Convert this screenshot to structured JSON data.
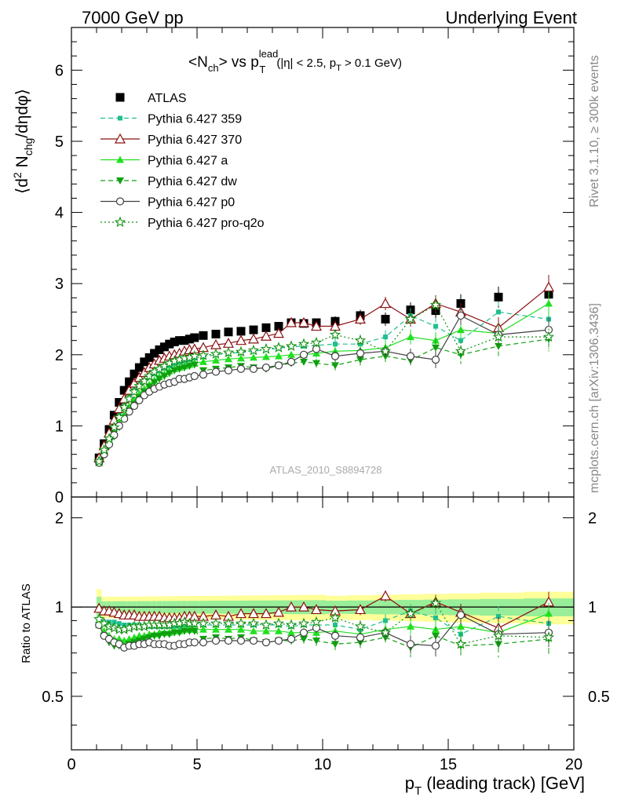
{
  "header": {
    "left": "7000 GeV pp",
    "right": "Underlying Event"
  },
  "side_labels": {
    "rivet": "Rivet 3.1.10, ≥ 300k events",
    "mcplots": "mcplots.cern.ch [arXiv:1306.3436]"
  },
  "chart_data": [
    {
      "type": "line",
      "title_parts": {
        "a": "<N",
        "a_sub": "ch",
        "b": "> vs p",
        "b_sup": "lead",
        "b_sub": "T",
        "cut1": "(|η| < 2.5, p",
        "cut_sub": "T",
        "cut2": " > 0.1 GeV)"
      },
      "ylabel_parts": {
        "a": "⟨d",
        "a_sup": "2",
        "b": " N",
        "b_sub": "chg",
        "c": "/dηdφ⟩"
      },
      "watermark": "ATLAS_2010_S8894728",
      "xlim": [
        0,
        20
      ],
      "ylim": [
        0,
        6.6
      ],
      "yticks": [
        "0",
        "1",
        "2",
        "3",
        "4",
        "5",
        "6"
      ],
      "legend_position": "top-left",
      "series": [
        {
          "name": "ATLAS",
          "color": "#000000",
          "line": "none",
          "marker": "square-filled",
          "x": [
            1.1,
            1.3,
            1.5,
            1.7,
            1.9,
            2.1,
            2.3,
            2.5,
            2.7,
            2.9,
            3.1,
            3.3,
            3.5,
            3.7,
            3.9,
            4.1,
            4.3,
            4.5,
            4.7,
            4.9,
            5.25,
            5.75,
            6.25,
            6.75,
            7.25,
            7.75,
            8.25,
            8.75,
            9.25,
            9.75,
            10.5,
            11.5,
            12.5,
            13.5,
            14.5,
            15.5,
            17,
            19
          ],
          "y": [
            0.55,
            0.75,
            0.95,
            1.15,
            1.33,
            1.5,
            1.62,
            1.73,
            1.82,
            1.9,
            1.96,
            2.02,
            2.07,
            2.11,
            2.15,
            2.18,
            2.2,
            2.2,
            2.22,
            2.24,
            2.27,
            2.29,
            2.32,
            2.33,
            2.35,
            2.38,
            2.4,
            2.45,
            2.44,
            2.45,
            2.47,
            2.55,
            2.5,
            2.63,
            2.62,
            2.72,
            2.81,
            2.85
          ]
        },
        {
          "name": "Pythia 6.427 359",
          "color": "#1fbf8f",
          "line": "dashed",
          "marker": "square-small",
          "x": [
            1.1,
            1.3,
            1.5,
            1.7,
            1.9,
            2.1,
            2.3,
            2.5,
            2.7,
            2.9,
            3.1,
            3.3,
            3.5,
            3.7,
            3.9,
            4.1,
            4.3,
            4.5,
            4.7,
            4.9,
            5.25,
            5.75,
            6.25,
            6.75,
            7.25,
            7.75,
            8.25,
            8.75,
            9.25,
            9.75,
            10.5,
            11.5,
            12.5,
            13.5,
            14.5,
            15.5,
            17,
            19
          ],
          "y": [
            0.5,
            0.68,
            0.85,
            1.02,
            1.17,
            1.3,
            1.41,
            1.5,
            1.58,
            1.64,
            1.69,
            1.73,
            1.77,
            1.81,
            1.84,
            1.87,
            1.89,
            1.91,
            1.93,
            1.95,
            1.97,
            2.0,
            2.02,
            2.03,
            2.05,
            2.07,
            2.09,
            2.11,
            2.12,
            2.13,
            2.15,
            2.15,
            2.25,
            2.55,
            2.4,
            2.2,
            2.6,
            2.5
          ]
        },
        {
          "name": "Pythia 6.427 370",
          "color": "#8b1010",
          "line": "solid",
          "marker": "triangle-open",
          "x": [
            1.1,
            1.3,
            1.5,
            1.7,
            1.9,
            2.1,
            2.3,
            2.5,
            2.7,
            2.9,
            3.1,
            3.3,
            3.5,
            3.7,
            3.9,
            4.1,
            4.3,
            4.5,
            4.7,
            4.9,
            5.25,
            5.75,
            6.25,
            6.75,
            7.25,
            7.75,
            8.25,
            8.75,
            9.25,
            9.75,
            10.5,
            11.5,
            12.5,
            13.5,
            14.5,
            15.5,
            17,
            19
          ],
          "y": [
            0.55,
            0.72,
            0.9,
            1.08,
            1.24,
            1.38,
            1.5,
            1.6,
            1.68,
            1.75,
            1.82,
            1.87,
            1.92,
            1.95,
            1.98,
            2.0,
            2.02,
            2.05,
            2.07,
            2.08,
            2.1,
            2.14,
            2.16,
            2.2,
            2.22,
            2.26,
            2.3,
            2.45,
            2.45,
            2.4,
            2.4,
            2.5,
            2.72,
            2.5,
            2.72,
            2.6,
            2.38,
            2.95
          ]
        },
        {
          "name": "Pythia 6.427 a",
          "color": "#20e020",
          "line": "solid",
          "marker": "triangle-filled",
          "x": [
            1.1,
            1.3,
            1.5,
            1.7,
            1.9,
            2.1,
            2.3,
            2.5,
            2.7,
            2.9,
            3.1,
            3.3,
            3.5,
            3.7,
            3.9,
            4.1,
            4.3,
            4.5,
            4.7,
            4.9,
            5.25,
            5.75,
            6.25,
            6.75,
            7.25,
            7.75,
            8.25,
            8.75,
            9.25,
            9.75,
            10.5,
            11.5,
            12.5,
            13.5,
            14.5,
            15.5,
            17,
            19
          ],
          "y": [
            0.48,
            0.62,
            0.76,
            0.9,
            1.04,
            1.16,
            1.27,
            1.37,
            1.45,
            1.52,
            1.58,
            1.64,
            1.69,
            1.73,
            1.77,
            1.8,
            1.82,
            1.84,
            1.86,
            1.88,
            1.9,
            1.92,
            1.94,
            1.95,
            1.96,
            1.97,
            1.98,
            2.0,
            2.0,
            2.02,
            2.05,
            2.06,
            2.1,
            2.25,
            2.2,
            2.35,
            2.3,
            2.72
          ]
        },
        {
          "name": "Pythia 6.427 dw",
          "color": "#10a010",
          "line": "dashed",
          "marker": "triangle-down-filled",
          "x": [
            1.1,
            1.3,
            1.5,
            1.7,
            1.9,
            2.1,
            2.3,
            2.5,
            2.7,
            2.9,
            3.1,
            3.3,
            3.5,
            3.7,
            3.9,
            4.1,
            4.3,
            4.5,
            4.7,
            4.9,
            5.25,
            5.75,
            6.25,
            6.75,
            7.25,
            7.75,
            8.25,
            8.75,
            9.25,
            9.75,
            10.5,
            11.5,
            12.5,
            13.5,
            14.5,
            15.5,
            17,
            19
          ],
          "y": [
            0.48,
            0.6,
            0.72,
            0.85,
            0.98,
            1.1,
            1.21,
            1.31,
            1.4,
            1.48,
            1.55,
            1.61,
            1.66,
            1.7,
            1.74,
            1.78,
            1.8,
            1.82,
            1.84,
            1.86,
            1.78,
            1.8,
            1.82,
            1.84,
            1.82,
            1.8,
            1.85,
            1.88,
            1.9,
            1.88,
            1.85,
            1.93,
            1.98,
            1.92,
            2.1,
            2.0,
            2.12,
            2.22
          ]
        },
        {
          "name": "Pythia 6.427 p0",
          "color": "#404040",
          "line": "solid",
          "marker": "circle-open",
          "x": [
            1.1,
            1.3,
            1.5,
            1.7,
            1.9,
            2.1,
            2.3,
            2.5,
            2.7,
            2.9,
            3.1,
            3.3,
            3.5,
            3.7,
            3.9,
            4.1,
            4.3,
            4.5,
            4.7,
            4.9,
            5.25,
            5.75,
            6.25,
            6.75,
            7.25,
            7.75,
            8.25,
            8.75,
            9.25,
            9.75,
            10.5,
            11.5,
            12.5,
            13.5,
            14.5,
            15.5,
            17,
            19
          ],
          "y": [
            0.48,
            0.6,
            0.74,
            0.87,
            1.0,
            1.1,
            1.2,
            1.28,
            1.36,
            1.43,
            1.48,
            1.52,
            1.55,
            1.58,
            1.6,
            1.62,
            1.66,
            1.66,
            1.68,
            1.7,
            1.72,
            1.76,
            1.78,
            1.8,
            1.8,
            1.82,
            1.85,
            1.9,
            2.0,
            2.08,
            1.98,
            2.02,
            2.05,
            1.98,
            1.93,
            2.55,
            2.28,
            2.35
          ]
        },
        {
          "name": "Pythia 6.427 pro-q2o",
          "color": "#109010",
          "line": "dotted",
          "marker": "star-open",
          "x": [
            1.1,
            1.3,
            1.5,
            1.7,
            1.9,
            2.1,
            2.3,
            2.5,
            2.7,
            2.9,
            3.1,
            3.3,
            3.5,
            3.7,
            3.9,
            4.1,
            4.3,
            4.5,
            4.7,
            4.9,
            5.25,
            5.75,
            6.25,
            6.75,
            7.25,
            7.75,
            8.25,
            8.75,
            9.25,
            9.75,
            10.5,
            11.5,
            12.5,
            13.5,
            14.5,
            15.5,
            17,
            19
          ],
          "y": [
            0.5,
            0.66,
            0.82,
            0.98,
            1.12,
            1.26,
            1.38,
            1.48,
            1.56,
            1.63,
            1.7,
            1.76,
            1.8,
            1.84,
            1.88,
            1.91,
            1.93,
            1.95,
            1.96,
            1.98,
            1.99,
            2.01,
            2.03,
            2.04,
            2.06,
            2.08,
            2.1,
            2.12,
            2.15,
            2.17,
            2.28,
            2.2,
            2.05,
            2.5,
            2.7,
            2.05,
            2.25,
            2.25
          ]
        }
      ]
    },
    {
      "type": "line",
      "ylabel": "Ratio to ATLAS",
      "xlabel_parts": {
        "a": "p",
        "a_sub": "T",
        "b": " (leading track) [GeV]"
      },
      "xlim": [
        0,
        20
      ],
      "ylim": [
        0.33,
        2.35
      ],
      "xticks": [
        "0",
        "5",
        "10",
        "15",
        "20"
      ],
      "yticks": [
        "0.5",
        "1",
        "2"
      ],
      "reference_line": 1,
      "series_ratio": [
        {
          "name": "Pythia 6.427 359",
          "y": [
            0.91,
            0.89,
            0.89,
            0.89,
            0.88,
            0.87,
            0.87,
            0.87,
            0.87,
            0.86,
            0.86,
            0.86,
            0.86,
            0.86,
            0.86,
            0.86,
            0.86,
            0.87,
            0.87,
            0.87,
            0.87,
            0.87,
            0.87,
            0.87,
            0.87,
            0.87,
            0.87,
            0.86,
            0.87,
            0.87,
            0.87,
            0.84,
            0.9,
            0.97,
            0.92,
            0.81,
            0.93,
            0.88
          ]
        },
        {
          "name": "Pythia 6.427 370",
          "y": [
            0.99,
            0.97,
            0.97,
            0.96,
            0.95,
            0.94,
            0.94,
            0.94,
            0.93,
            0.93,
            0.93,
            0.93,
            0.93,
            0.92,
            0.92,
            0.92,
            0.92,
            0.93,
            0.93,
            0.93,
            0.93,
            0.94,
            0.93,
            0.95,
            0.95,
            0.95,
            0.96,
            1.0,
            1.0,
            0.98,
            0.97,
            0.98,
            1.09,
            0.95,
            1.04,
            0.96,
            0.85,
            1.04
          ]
        },
        {
          "name": "Pythia 6.427 a",
          "y": [
            0.87,
            0.83,
            0.8,
            0.78,
            0.78,
            0.77,
            0.78,
            0.79,
            0.8,
            0.8,
            0.81,
            0.81,
            0.82,
            0.82,
            0.82,
            0.83,
            0.83,
            0.84,
            0.84,
            0.84,
            0.84,
            0.84,
            0.84,
            0.84,
            0.83,
            0.83,
            0.83,
            0.82,
            0.82,
            0.82,
            0.83,
            0.81,
            0.84,
            0.86,
            0.84,
            0.86,
            0.82,
            0.95
          ]
        },
        {
          "name": "Pythia 6.427 dw",
          "y": [
            0.87,
            0.8,
            0.76,
            0.74,
            0.74,
            0.73,
            0.75,
            0.76,
            0.77,
            0.78,
            0.79,
            0.8,
            0.8,
            0.81,
            0.81,
            0.82,
            0.82,
            0.83,
            0.83,
            0.83,
            0.78,
            0.79,
            0.78,
            0.79,
            0.77,
            0.76,
            0.77,
            0.77,
            0.78,
            0.77,
            0.75,
            0.76,
            0.79,
            0.73,
            0.8,
            0.74,
            0.75,
            0.78
          ]
        },
        {
          "name": "Pythia 6.427 p0",
          "y": [
            0.87,
            0.8,
            0.78,
            0.76,
            0.75,
            0.73,
            0.74,
            0.74,
            0.75,
            0.75,
            0.76,
            0.75,
            0.75,
            0.75,
            0.74,
            0.74,
            0.75,
            0.75,
            0.76,
            0.76,
            0.76,
            0.77,
            0.77,
            0.77,
            0.77,
            0.76,
            0.77,
            0.78,
            0.82,
            0.85,
            0.8,
            0.79,
            0.82,
            0.75,
            0.74,
            0.94,
            0.81,
            0.82
          ]
        },
        {
          "name": "Pythia 6.427 pro-q2o",
          "y": [
            0.91,
            0.88,
            0.86,
            0.85,
            0.84,
            0.84,
            0.85,
            0.86,
            0.86,
            0.86,
            0.87,
            0.87,
            0.87,
            0.87,
            0.87,
            0.88,
            0.88,
            0.89,
            0.88,
            0.88,
            0.88,
            0.88,
            0.88,
            0.88,
            0.88,
            0.87,
            0.88,
            0.87,
            0.88,
            0.89,
            0.92,
            0.86,
            0.82,
            0.95,
            1.03,
            0.75,
            0.8,
            0.79
          ]
        }
      ],
      "uncertainty_bands": {
        "outer": "#ffff99",
        "inner": "#99ee99"
      }
    }
  ]
}
